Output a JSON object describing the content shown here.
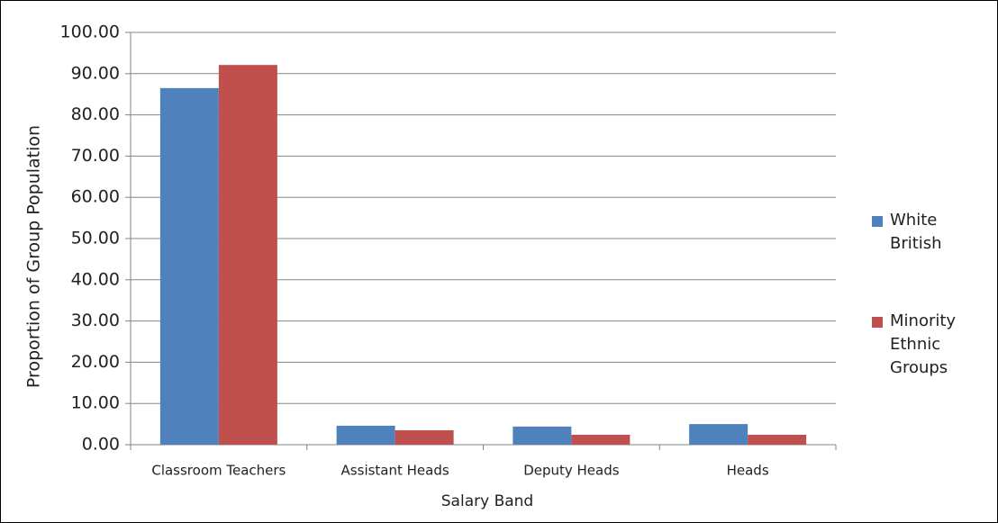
{
  "chart_data": {
    "type": "bar",
    "x_label": "Salary Band",
    "y_label": "Proportion of Group Population",
    "categories": [
      "Classroom Teachers",
      "Assistant Heads",
      "Deputy Heads",
      "Heads"
    ],
    "series": [
      {
        "name": "White British",
        "color": "#4f81bd",
        "values": [
          86.5,
          4.6,
          4.4,
          5.0
        ]
      },
      {
        "name": "Minority Ethnic Groups",
        "color": "#c0504d",
        "values": [
          92.1,
          3.5,
          2.4,
          2.4
        ]
      }
    ],
    "ylim": [
      0,
      100
    ],
    "yticks": [
      {
        "value": 0,
        "label": "0.00"
      },
      {
        "value": 10,
        "label": "10.00"
      },
      {
        "value": 20,
        "label": "20.00"
      },
      {
        "value": 30,
        "label": "30.00"
      },
      {
        "value": 40,
        "label": "40.00"
      },
      {
        "value": 50,
        "label": "50.00"
      },
      {
        "value": 60,
        "label": "60.00"
      },
      {
        "value": 70,
        "label": "70.00"
      },
      {
        "value": 80,
        "label": "80.00"
      },
      {
        "value": 90,
        "label": "90.00"
      },
      {
        "value": 100,
        "label": "100.00"
      }
    ],
    "grid": true,
    "legend": "right"
  }
}
